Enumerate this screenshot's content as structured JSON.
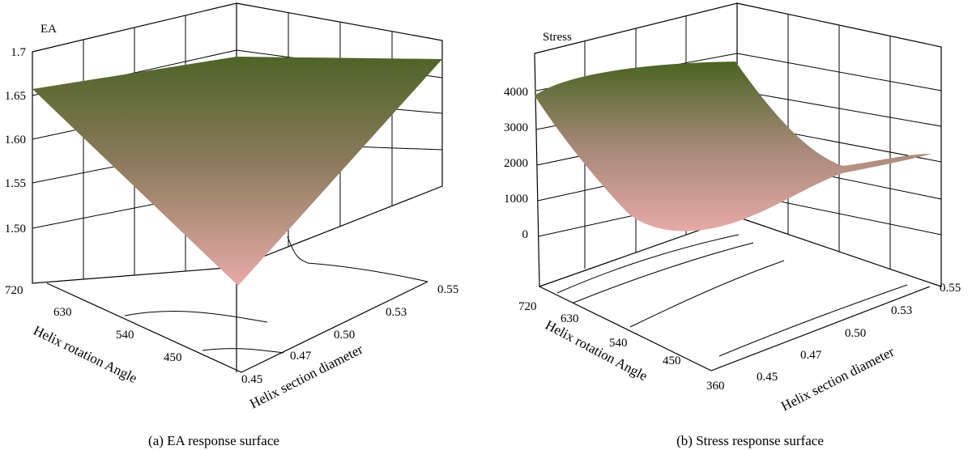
{
  "chart_data": [
    {
      "type": "surface",
      "zlabel": "EA",
      "xlabel": "Helix rotation Angle",
      "ylabel": "Helix section diameter",
      "x_ticks": [
        "720",
        "630",
        "540",
        "450"
      ],
      "y_ticks": [
        "0.45",
        "0.47",
        "0.50",
        "0.53",
        "0.55"
      ],
      "z_ticks": [
        "1.7",
        "1.65",
        "1.60",
        "1.55",
        "1.50"
      ],
      "zlim": [
        1.45,
        1.7
      ],
      "surface_corners": [
        {
          "rotation": 720,
          "diameter": 0.45,
          "value": 1.64
        },
        {
          "rotation": 720,
          "diameter": 0.55,
          "value": 1.7
        },
        {
          "rotation": 360,
          "diameter": 0.45,
          "value": 1.48
        },
        {
          "rotation": 360,
          "diameter": 0.55,
          "value": 1.69
        }
      ],
      "caption": "(a) EA response surface"
    },
    {
      "type": "surface",
      "zlabel": "Stress",
      "xlabel": "Helix rotation Angle",
      "ylabel": "Helix section diameter",
      "x_ticks": [
        "720",
        "630",
        "540",
        "450",
        "360"
      ],
      "y_ticks": [
        "0.45",
        "0.47",
        "0.50",
        "0.53",
        "0.55"
      ],
      "z_ticks": [
        "4000",
        "3000",
        "2000",
        "1000",
        "0"
      ],
      "zlim": [
        -500,
        4500
      ],
      "surface_samples": [
        {
          "rotation": 720,
          "diameter": 0.45,
          "value": 3800
        },
        {
          "rotation": 630,
          "diameter": 0.45,
          "value": 2000
        },
        {
          "rotation": 540,
          "diameter": 0.45,
          "value": 200
        },
        {
          "rotation": 450,
          "diameter": 0.45,
          "value": 700
        },
        {
          "rotation": 360,
          "diameter": 0.45,
          "value": 1200
        },
        {
          "rotation": 720,
          "diameter": 0.55,
          "value": 4300
        },
        {
          "rotation": 360,
          "diameter": 0.55,
          "value": 2100
        }
      ],
      "caption": "(b) Stress response surface"
    }
  ]
}
